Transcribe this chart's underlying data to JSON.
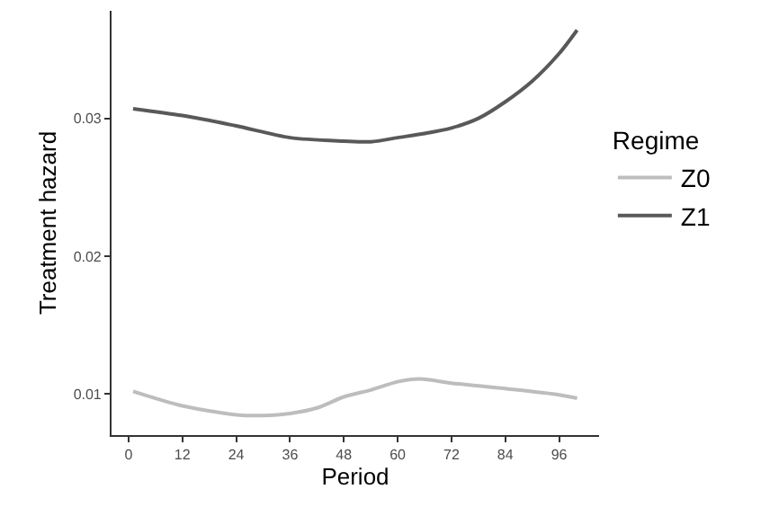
{
  "chart_data": {
    "type": "line",
    "xlabel": "Period",
    "ylabel": "Treatment hazard",
    "legend_title": "Regime",
    "legend": "right",
    "grid": false,
    "marker": "none",
    "line_style": "solid",
    "xlim": [
      -3.8,
      104.9
    ],
    "xticks": [
      0,
      12,
      24,
      36,
      48,
      60,
      72,
      84,
      96
    ],
    "ylim": [
      0.00703,
      0.0378
    ],
    "yticks": [
      0.01,
      0.02,
      0.03
    ],
    "series": [
      {
        "name": "Z0",
        "color": "#bdbdbd",
        "x": [
          1,
          12,
          24,
          30,
          36,
          42,
          48,
          54,
          60,
          65,
          72,
          84,
          96,
          100
        ],
        "values": [
          0.0102,
          0.00915,
          0.0085,
          0.00845,
          0.0086,
          0.009,
          0.0098,
          0.0103,
          0.0109,
          0.0111,
          0.0108,
          0.0104,
          0.00995,
          0.0097
        ]
      },
      {
        "name": "Z1",
        "color": "#595959",
        "x": [
          1,
          12,
          24,
          36,
          48,
          54,
          60,
          66,
          72,
          78,
          84,
          90,
          96,
          100
        ],
        "values": [
          0.0307,
          0.0302,
          0.02945,
          0.0286,
          0.02835,
          0.0283,
          0.0286,
          0.0289,
          0.0293,
          0.03,
          0.0312,
          0.0327,
          0.0347,
          0.0364
        ]
      }
    ]
  }
}
